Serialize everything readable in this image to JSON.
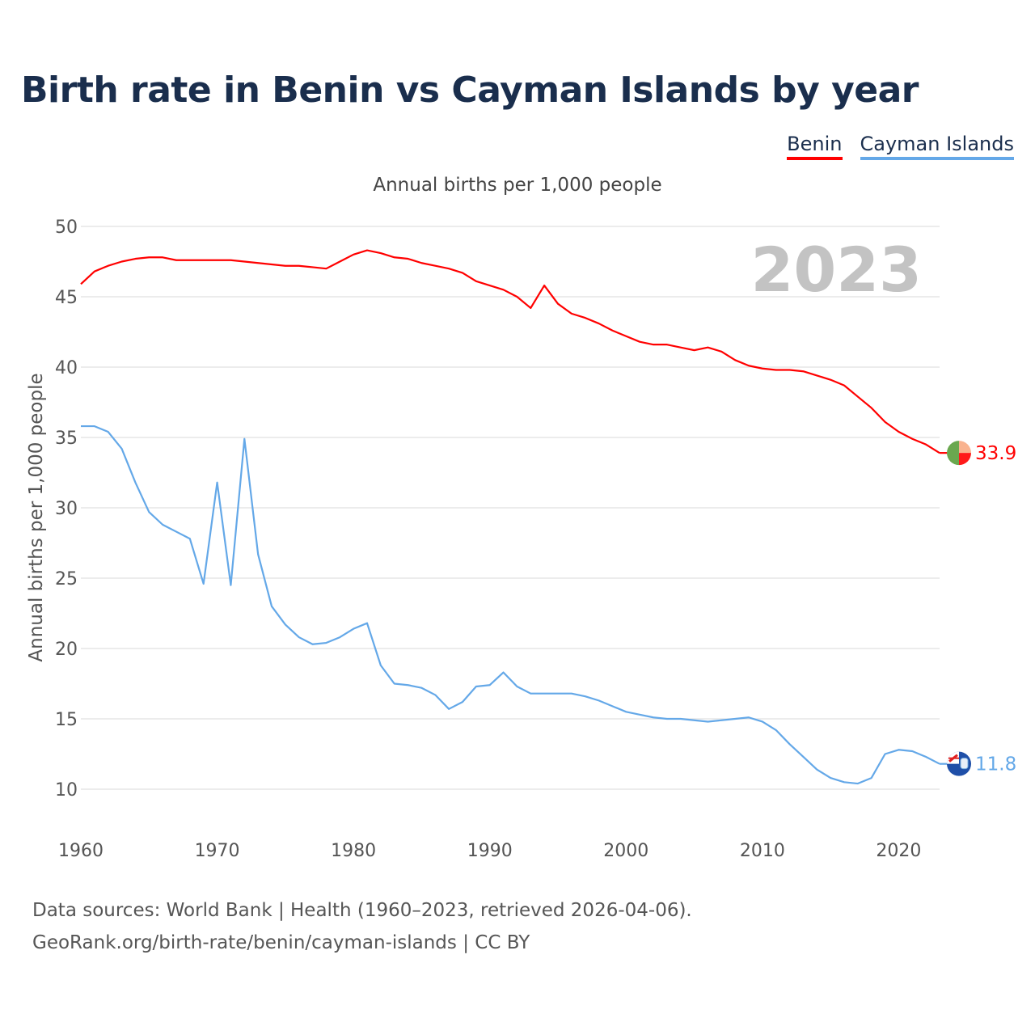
{
  "title": "Birth rate in Benin vs Cayman Islands by year",
  "legend": {
    "benin": "Benin",
    "cayman": "Cayman Islands"
  },
  "subtitle": "Annual births per 1,000 people",
  "source": {
    "line1": "Data sources: World Bank | Health (1960–2023, retrieved 2026-04-06).",
    "line2": "GeoRank.org/birth-rate/benin/cayman-islands | CC BY"
  },
  "colors": {
    "benin": "#ff0000",
    "cayman": "#64a8e8",
    "grid": "#e6e6e6"
  },
  "chart_data": {
    "type": "line",
    "title": "Birth rate in Benin vs Cayman Islands by year",
    "xlabel": "",
    "ylabel": "Annual births per 1,000 people",
    "xlim": [
      1960,
      2023
    ],
    "ylim": [
      10,
      50
    ],
    "x_ticks": [
      1960,
      1970,
      1980,
      1990,
      2000,
      2010,
      2020
    ],
    "y_ticks": [
      10,
      15,
      20,
      25,
      30,
      35,
      40,
      45,
      50
    ],
    "grid": true,
    "highlight_year": "2023",
    "x": [
      1960,
      1961,
      1962,
      1963,
      1964,
      1965,
      1966,
      1967,
      1968,
      1969,
      1970,
      1971,
      1972,
      1973,
      1974,
      1975,
      1976,
      1977,
      1978,
      1979,
      1980,
      1981,
      1982,
      1983,
      1984,
      1985,
      1986,
      1987,
      1988,
      1989,
      1990,
      1991,
      1992,
      1993,
      1994,
      1995,
      1996,
      1997,
      1998,
      1999,
      2000,
      2001,
      2002,
      2003,
      2004,
      2005,
      2006,
      2007,
      2008,
      2009,
      2010,
      2011,
      2012,
      2013,
      2014,
      2015,
      2016,
      2017,
      2018,
      2019,
      2020,
      2021,
      2022,
      2023
    ],
    "series": [
      {
        "name": "Benin",
        "end_label": "33.9",
        "values": [
          45.9,
          46.8,
          47.2,
          47.5,
          47.7,
          47.8,
          47.8,
          47.6,
          47.6,
          47.6,
          47.6,
          47.6,
          47.5,
          47.4,
          47.3,
          47.2,
          47.2,
          47.1,
          47.0,
          47.5,
          48.0,
          48.3,
          48.1,
          47.8,
          47.7,
          47.4,
          47.2,
          47.0,
          46.7,
          46.1,
          45.8,
          45.5,
          45.0,
          44.2,
          45.8,
          44.5,
          43.8,
          43.5,
          43.1,
          42.6,
          42.2,
          41.8,
          41.6,
          41.6,
          41.4,
          41.2,
          41.4,
          41.1,
          40.5,
          40.1,
          39.9,
          39.8,
          39.8,
          39.7,
          39.4,
          39.1,
          38.7,
          37.9,
          37.1,
          36.1,
          35.4,
          34.9,
          34.5,
          33.9
        ]
      },
      {
        "name": "Cayman Islands",
        "end_label": "11.8",
        "values": [
          35.8,
          35.8,
          35.4,
          34.2,
          31.8,
          29.7,
          28.8,
          28.3,
          27.8,
          24.6,
          31.8,
          24.5,
          34.9,
          26.7,
          23.0,
          21.7,
          20.8,
          20.3,
          20.4,
          20.8,
          21.4,
          21.8,
          18.8,
          17.5,
          17.4,
          17.2,
          16.7,
          15.7,
          16.2,
          17.3,
          17.4,
          18.3,
          17.3,
          16.8,
          16.8,
          16.8,
          16.8,
          16.6,
          16.3,
          15.9,
          15.5,
          15.3,
          15.1,
          15.0,
          15.0,
          14.9,
          14.8,
          14.9,
          15.0,
          15.1,
          14.8,
          14.2,
          13.2,
          12.3,
          11.4,
          10.8,
          10.5,
          10.4,
          10.8,
          12.5,
          12.8,
          12.7,
          12.3,
          11.8
        ]
      }
    ]
  }
}
